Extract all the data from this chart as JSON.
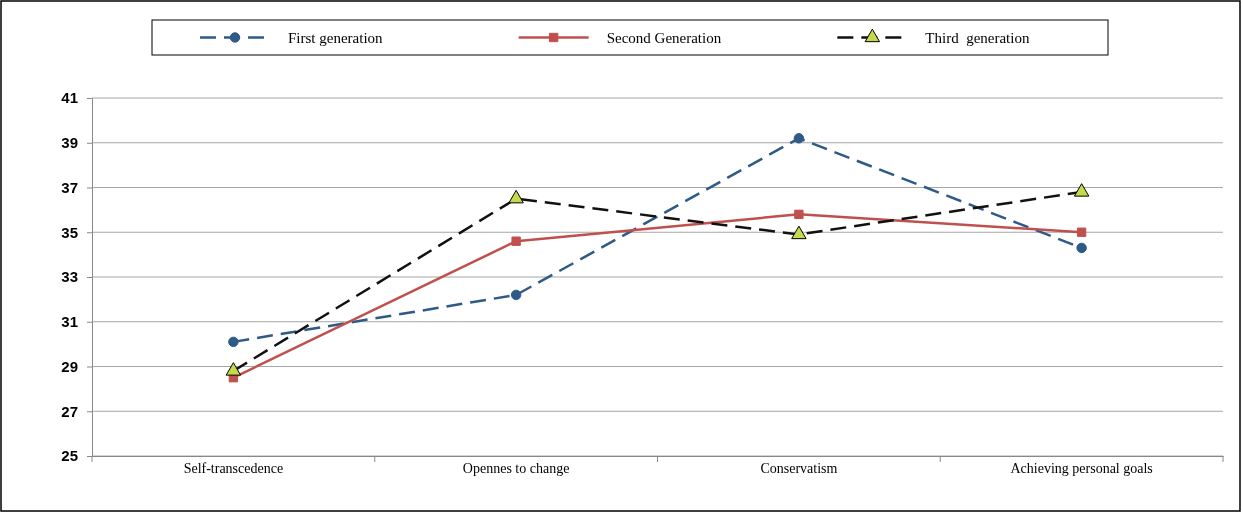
{
  "chart_data": {
    "type": "line",
    "categories": [
      "Self-transcedence",
      "Opennes to change",
      "Conservatism",
      "Achieving personal goals"
    ],
    "series": [
      {
        "name": "First generation",
        "color": "#2e5a87",
        "values": [
          30.1,
          32.2,
          39.2,
          34.3
        ],
        "marker": "circle",
        "line_style": "dashed"
      },
      {
        "name": "Second Generation",
        "color": "#c0504d",
        "values": [
          28.5,
          34.6,
          35.8,
          35.0
        ],
        "marker": "square",
        "line_style": "solid"
      },
      {
        "name": "Third  generation",
        "color": "#111111",
        "values": [
          28.8,
          36.5,
          34.9,
          36.8
        ],
        "marker": "triangle",
        "line_style": "dashed"
      }
    ],
    "ylim": [
      25,
      41
    ],
    "yticks": [
      25,
      27,
      29,
      31,
      33,
      35,
      37,
      39,
      41
    ],
    "grid": "y",
    "legend": "top"
  }
}
